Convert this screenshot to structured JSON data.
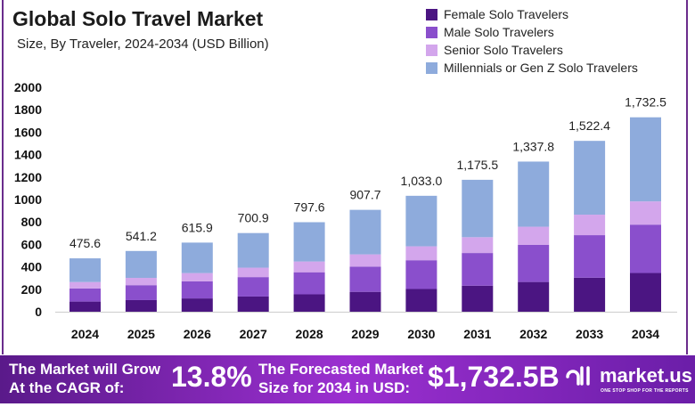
{
  "chart_data": {
    "type": "bar",
    "stacked": true,
    "title": "Global Solo Travel Market",
    "subtitle": "Size, By Traveler, 2024-2034 (USD Billion)",
    "categories": [
      "2024",
      "2025",
      "2026",
      "2027",
      "2028",
      "2029",
      "2030",
      "2031",
      "2032",
      "2033",
      "2034"
    ],
    "totals": [
      475.6,
      541.2,
      615.9,
      700.9,
      797.6,
      907.7,
      1033.0,
      1175.5,
      1337.8,
      1522.4,
      1732.5
    ],
    "total_labels": [
      "475.6",
      "541.2",
      "615.9",
      "700.9",
      "797.6",
      "907.7",
      "1,033.0",
      "1,175.5",
      "1,337.8",
      "1,522.4",
      "1,732.5"
    ],
    "series": [
      {
        "name": "Female Solo Travelers",
        "color": "#4b1582",
        "values": [
          90.4,
          103.4,
          118.3,
          135.3,
          154.7,
          177.0,
          202.5,
          231.6,
          264.9,
          303.0,
          345.0
        ]
      },
      {
        "name": "Male Solo Travelers",
        "color": "#8a4fcc",
        "values": [
          117.0,
          133.1,
          152.1,
          173.1,
          197.0,
          225.1,
          256.2,
          291.5,
          331.8,
          379.1,
          431.0
        ]
      },
      {
        "name": "Senior Solo Travelers",
        "color": "#d3a6ec",
        "values": [
          57.1,
          64.9,
          73.9,
          84.1,
          95.7,
          108.9,
          124.0,
          141.1,
          160.5,
          182.7,
          207.0
        ]
      },
      {
        "name": "Millennials or Gen Z Solo Travelers",
        "color": "#8eabdc",
        "values": [
          211.1,
          239.8,
          271.6,
          308.4,
          350.2,
          396.7,
          450.3,
          511.3,
          580.6,
          657.6,
          749.5
        ]
      }
    ],
    "ylim": [
      0,
      2000
    ],
    "yticks": [
      "0",
      "200",
      "400",
      "600",
      "800",
      "1000",
      "1200",
      "1400",
      "1600",
      "1800",
      "2000"
    ],
    "grid": false,
    "legend": "top-right"
  },
  "footer": {
    "cagr_label": [
      "The Market will Grow",
      "At the CAGR of:"
    ],
    "cagr_value": "13.8%",
    "forecast_label": [
      "The Forecasted Market",
      "Size for 2034 in USD:"
    ],
    "forecast_value": "$1,732.5B",
    "brand": "market.us",
    "tagline": "ONE STOP SHOP FOR THE REPORTS"
  }
}
